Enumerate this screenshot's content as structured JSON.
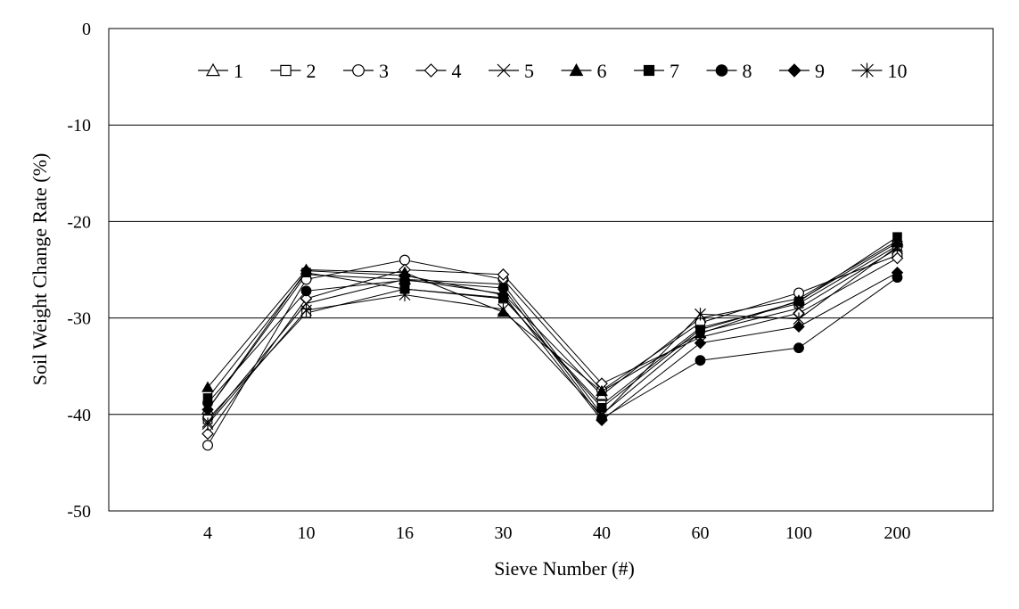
{
  "chart_data": {
    "type": "line",
    "title": "",
    "xlabel": "Sieve Number (#)",
    "ylabel": "Soil Weight Change Rate (%)",
    "ylim": [
      -50,
      0
    ],
    "yticks": [
      0,
      -10,
      -20,
      -30,
      -40,
      -50
    ],
    "categories": [
      "4",
      "10",
      "16",
      "30",
      "40",
      "60",
      "100",
      "200"
    ],
    "grid": "horizontal",
    "legend_position": "top",
    "series": [
      {
        "name": "1",
        "marker": "triangle-open",
        "values": [
          -39.5,
          -25.5,
          -26.0,
          -27.5,
          -38.0,
          -30.0,
          -28.0,
          -22.0
        ]
      },
      {
        "name": "2",
        "marker": "square-open",
        "values": [
          -40.5,
          -29.5,
          -27.0,
          -28.0,
          -39.0,
          -31.0,
          -28.5,
          -22.5
        ]
      },
      {
        "name": "3",
        "marker": "circle-open",
        "values": [
          -43.2,
          -26.0,
          -24.0,
          -26.0,
          -37.5,
          -30.5,
          -27.4,
          -23.5
        ]
      },
      {
        "name": "4",
        "marker": "diamond-open",
        "values": [
          -42.0,
          -28.0,
          -25.0,
          -25.5,
          -36.8,
          -32.0,
          -29.5,
          -23.8
        ]
      },
      {
        "name": "5",
        "marker": "x",
        "values": [
          -40.8,
          -28.5,
          -26.0,
          -26.5,
          -40.0,
          -31.5,
          -29.0,
          -22.8
        ]
      },
      {
        "name": "6",
        "marker": "triangle-filled",
        "values": [
          -37.2,
          -25.0,
          -25.3,
          -29.4,
          -37.6,
          -31.6,
          -28.2,
          -22.2
        ]
      },
      {
        "name": "7",
        "marker": "square-filled",
        "values": [
          -38.3,
          -25.3,
          -27.0,
          -27.9,
          -39.3,
          -31.2,
          -28.3,
          -21.6
        ]
      },
      {
        "name": "8",
        "marker": "circle-filled",
        "values": [
          -38.8,
          -27.2,
          -26.1,
          -26.9,
          -40.4,
          -34.4,
          -33.1,
          -25.8
        ]
      },
      {
        "name": "9",
        "marker": "diamond-filled",
        "values": [
          -39.5,
          -25.1,
          -25.6,
          -27.6,
          -40.6,
          -32.6,
          -30.9,
          -25.3
        ]
      },
      {
        "name": "10",
        "marker": "asterisk",
        "values": [
          -41.0,
          -29.2,
          -27.6,
          -29.1,
          -40.1,
          -29.6,
          -30.1,
          -22.6
        ]
      }
    ]
  }
}
